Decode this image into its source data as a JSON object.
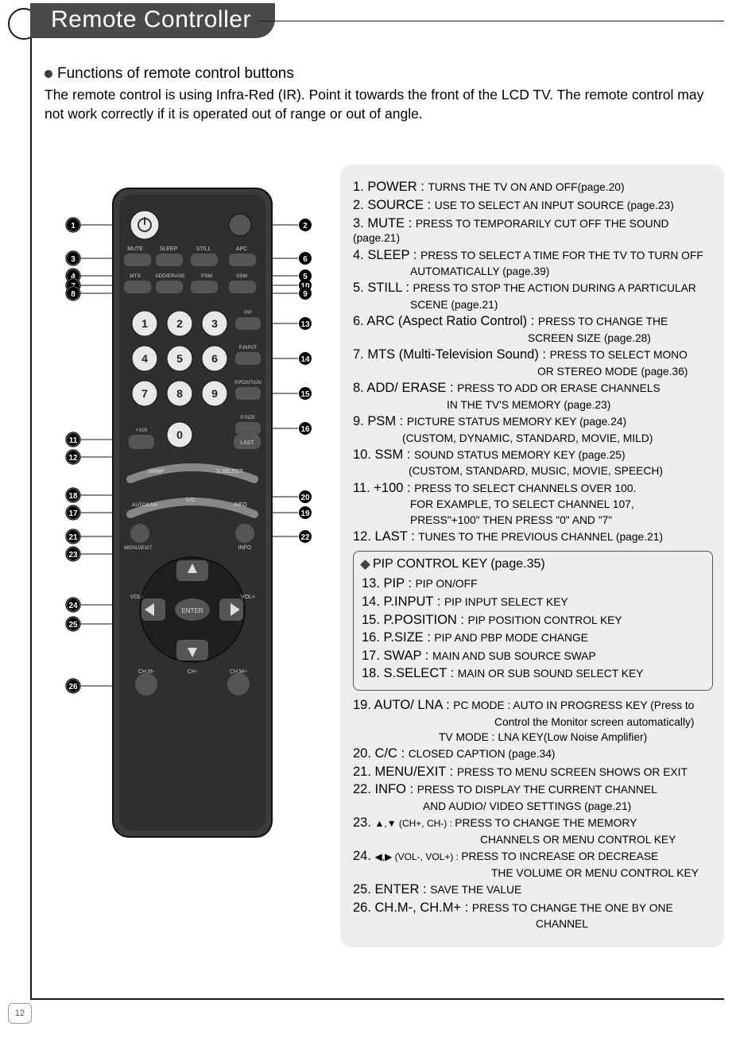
{
  "page": {
    "title": "Remote Controller",
    "section_title": "Functions of remote control buttons",
    "intro": "The remote control is using Infra-Red (IR). Point it towards the front of the LCD TV. The remote control may not work correctly if it is operated out of range or out of angle.",
    "page_number": "12"
  },
  "colors": {
    "tab_bg": "#4a4a4a",
    "tab_fg": "#ffffff",
    "desc_bg": "#eeeeee",
    "rule": "#1a1a1a",
    "remote_body": "#3c3c3c",
    "remote_body_dark": "#2a2a2a",
    "btn_light": "#e8e8e8",
    "btn_dark": "#555555",
    "callout": "#1a1a1a"
  },
  "remote": {
    "row_labels_top": [
      "MUTE",
      "SLEEP",
      "STILL",
      "APC"
    ],
    "row_labels_2": [
      "MTS",
      "ADD/ERASE",
      "PSM",
      "SSM"
    ],
    "num_keys": [
      "1",
      "2",
      "3",
      "4",
      "5",
      "6",
      "7",
      "8",
      "9",
      "0"
    ],
    "side_right_small": [
      "PIP",
      "P.INPUT",
      "P.POSITION",
      "P.SIZE"
    ],
    "bottom_small_a": [
      "+100"
    ],
    "bottom_small_b": [
      "LAST"
    ],
    "mid_labels": [
      "SWAP",
      "S.SELECT"
    ],
    "menu_labels": [
      "MENU/EXIT",
      "C/C",
      "INFO"
    ],
    "vol_labels": [
      "VOL-",
      "VOL+"
    ],
    "ch_labels": [
      "CH.M-",
      "CH.M+",
      "CH-"
    ],
    "enter": "ENTER"
  },
  "callouts_left": [
    "1",
    "3",
    "4",
    "7",
    "8",
    "11",
    "12",
    "18",
    "17",
    "21",
    "23",
    "24",
    "25",
    "26"
  ],
  "callouts_right": [
    "2",
    "6",
    "5",
    "10",
    "9",
    "13",
    "14",
    "15",
    "16",
    "20",
    "19",
    "22"
  ],
  "functions_main": [
    {
      "n": "1",
      "label": "POWER : ",
      "text": "TURNS THE TV ON AND OFF(page.20)"
    },
    {
      "n": "2",
      "label": "SOURCE : ",
      "text": "USE TO SELECT AN INPUT SOURCE (page.23)"
    },
    {
      "n": "3",
      "label": "MUTE : ",
      "text": "PRESS TO TEMPORARILY CUT OFF THE SOUND (page.21)"
    },
    {
      "n": "4",
      "label": "SLEEP : ",
      "text": "PRESS TO SELECT A TIME FOR THE TV TO TURN OFF",
      "cont": [
        "AUTOMATICALLY (page.39)"
      ]
    },
    {
      "n": "5",
      "label": "STILL : ",
      "text": "PRESS TO STOP THE ACTION DURING A PARTICULAR",
      "cont": [
        "SCENE (page.21)"
      ]
    },
    {
      "n": "6",
      "label": "ARC (Aspect Ratio Control) : ",
      "text": "PRESS TO CHANGE THE",
      "cont": [
        "SCREEN SIZE (page.28)"
      ],
      "cont_pad": 220
    },
    {
      "n": "7",
      "label": "MTS (Multi-Television Sound) : ",
      "text": "PRESS TO SELECT MONO",
      "cont": [
        "OR STEREO MODE (page.36)"
      ],
      "cont_pad": 232
    },
    {
      "n": "8",
      "label": "ADD/ ERASE : ",
      "text": "PRESS TO ADD OR ERASE CHANNELS",
      "cont": [
        "IN THE TV'S MEMORY (page.23)"
      ],
      "cont_pad": 118
    },
    {
      "n": "9",
      "label": "PSM : ",
      "text": "PICTURE STATUS MEMORY KEY (page.24)",
      "cont": [
        "(CUSTOM, DYNAMIC, STANDARD,  MOVIE, MILD)"
      ],
      "cont_pad": 62
    },
    {
      "n": "10",
      "label": "SSM : ",
      "text": "SOUND STATUS MEMORY KEY (page.25)",
      "cont": [
        "(CUSTOM, STANDARD, MUSIC, MOVIE, SPEECH)"
      ],
      "cont_pad": 70
    },
    {
      "n": "11",
      "label": "+100 : ",
      "text": "PRESS TO SELECT CHANNELS OVER 100.",
      "cont": [
        "FOR EXAMPLE, TO SELECT CHANNEL 107,",
        "PRESS\"+100\" THEN PRESS \"0\" AND \"7\""
      ],
      "cont_pad": 72
    },
    {
      "n": "12",
      "label": "LAST : ",
      "text": "TUNES TO THE PREVIOUS CHANNEL (page.21)"
    }
  ],
  "pip": {
    "title": "PIP CONTROL KEY (page.35)",
    "items": [
      {
        "n": "13",
        "label": "PIP : ",
        "text": "PIP ON/OFF"
      },
      {
        "n": "14",
        "label": "P.INPUT : ",
        "text": "PIP INPUT SELECT KEY"
      },
      {
        "n": "15",
        "label": "P.POSITION : ",
        "text": "PIP POSITION CONTROL KEY"
      },
      {
        "n": "16",
        "label": "P.SIZE : ",
        "text": "PIP AND PBP MODE CHANGE"
      },
      {
        "n": "17",
        "label": "SWAP : ",
        "text": "MAIN AND SUB SOURCE SWAP"
      },
      {
        "n": "18",
        "label": "S.SELECT : ",
        "text": "MAIN OR SUB SOUND SELECT KEY"
      }
    ]
  },
  "functions_tail": [
    {
      "n": "19",
      "label": "AUTO/ LNA : ",
      "text": "PC MODE : AUTO IN PROGRESS KEY (Press to",
      "cont": [
        "Control the Monitor screen automatically)",
        "TV MODE : LNA KEY(Low Noise Amplifier)"
      ],
      "cont_pad": 178,
      "cont_pad2": 108
    },
    {
      "n": "20",
      "label": "C/C : ",
      "text": "CLOSED CAPTION (page.34)"
    },
    {
      "n": "21",
      "label": "MENU/EXIT : ",
      "text": "PRESS TO MENU SCREEN SHOWS OR EXIT"
    },
    {
      "n": "22",
      "label": "INFO : ",
      "text": "PRESS TO DISPLAY THE CURRENT CHANNEL",
      "cont": [
        "AND AUDIO/ VIDEO SETTINGS (page.21)"
      ],
      "cont_pad": 88
    },
    {
      "n": "23",
      "label_arrows": "▲,▼  (CH+, CH-) : ",
      "text": "PRESS TO CHANGE THE MEMORY",
      "cont": [
        "CHANNELS OR MENU CONTROL KEY"
      ],
      "cont_pad": 160
    },
    {
      "n": "24",
      "label_arrows": "◀,▶  (VOL-, VOL+) : ",
      "text": "PRESS TO INCREASE OR DECREASE",
      "cont": [
        "THE VOLUME OR MENU CONTROL KEY"
      ],
      "cont_pad": 174
    },
    {
      "n": "25",
      "label": "ENTER : ",
      "text": "SAVE THE VALUE"
    },
    {
      "n": "26",
      "label": "CH.M-, CH.M+ : ",
      "text": "PRESS TO CHANGE THE ONE BY ONE",
      "cont": [
        "CHANNEL"
      ],
      "cont_pad": 230
    }
  ]
}
